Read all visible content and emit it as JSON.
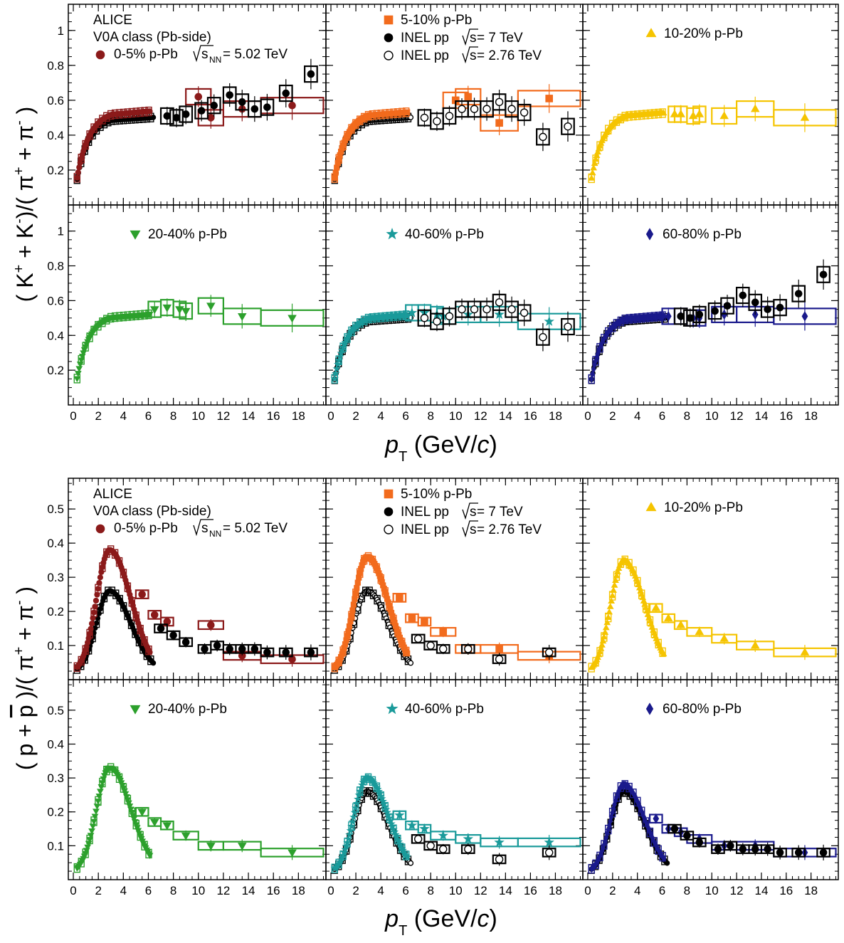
{
  "chart_data": [
    {
      "type": "scatter",
      "block": "kaon",
      "ylabel_parts": {
        "pre": "( K",
        "sup1": "+",
        "mid": " + K",
        "sup2": "-",
        "post": ")/( π",
        "sup3": "+",
        "post2": " + π",
        "sup4": "-",
        "post3": " )"
      },
      "xlabel_parts": {
        "p": "p",
        "sub": "T",
        "rest": " (GeV/",
        "c": "c",
        "close": ")"
      },
      "xlim": [
        -0.4,
        20.2
      ],
      "ylim": [
        0,
        1.15
      ],
      "yticks": [
        0.2,
        0.4,
        0.6,
        0.8,
        1
      ],
      "ytick_labels": [
        "0.2",
        "0.4",
        "0.6",
        "0.8",
        "1"
      ],
      "xticks": [
        0,
        2,
        4,
        6,
        8,
        10,
        12,
        14,
        16,
        18
      ],
      "xtick_labels": [
        "0",
        "2",
        "4",
        "6",
        "8",
        "10",
        "12",
        "14",
        "16",
        "18"
      ],
      "panels": [
        {
          "id": "0-5",
          "label": "0-5% p-Pb",
          "color": "#8b1a1a",
          "marker": "circle",
          "legend_ref": true
        },
        {
          "id": "5-10",
          "label": "5-10% p-Pb",
          "color": "#f26b1d",
          "marker": "square",
          "legend_ref": true
        },
        {
          "id": "10-20",
          "label": "10-20% p-Pb",
          "color": "#f5c400",
          "marker": "triangle-up"
        },
        {
          "id": "20-40",
          "label": "20-40% p-Pb",
          "color": "#2ca02c",
          "marker": "triangle-down"
        },
        {
          "id": "40-60",
          "label": "40-60% p-Pb",
          "color": "#1a9a9a",
          "marker": "star",
          "ref": "276"
        },
        {
          "id": "60-80",
          "label": "60-80% p-Pb",
          "color": "#1a1a8c",
          "marker": "diamond",
          "ref": "7"
        }
      ],
      "ppb_high": {
        "0-5": [
          [
            10.0,
            0.62,
            1.0
          ],
          [
            11.0,
            0.5,
            1.0
          ],
          [
            13.5,
            0.55,
            1.5
          ],
          [
            17.5,
            0.57,
            2.5
          ]
        ],
        "5-10": [
          [
            10.0,
            0.6,
            1.0
          ],
          [
            11.0,
            0.62,
            1.0
          ],
          [
            13.5,
            0.47,
            1.5
          ],
          [
            17.5,
            0.61,
            2.5
          ]
        ],
        "10-20": [
          [
            7.0,
            0.52,
            0.5
          ],
          [
            7.5,
            0.52,
            0.5
          ],
          [
            8.5,
            0.51,
            0.5
          ],
          [
            9.0,
            0.52,
            0.5
          ],
          [
            11.0,
            0.51,
            1.0
          ],
          [
            13.5,
            0.55,
            1.5
          ],
          [
            17.5,
            0.5,
            2.5
          ]
        ],
        "20-40": [
          [
            6.5,
            0.55,
            0.5
          ],
          [
            7.5,
            0.56,
            0.5
          ],
          [
            8.5,
            0.55,
            0.5
          ],
          [
            9.0,
            0.54,
            0.5
          ],
          [
            11.0,
            0.57,
            1.0
          ],
          [
            13.5,
            0.51,
            1.5
          ],
          [
            17.5,
            0.5,
            2.5
          ]
        ],
        "40-60": [
          [
            6.5,
            0.53,
            0.5
          ],
          [
            7.5,
            0.53,
            0.5
          ],
          [
            8.5,
            0.52,
            0.5
          ],
          [
            9.0,
            0.51,
            0.5
          ],
          [
            11.0,
            0.52,
            1.0
          ],
          [
            13.5,
            0.52,
            1.5
          ],
          [
            17.5,
            0.48,
            2.5
          ]
        ],
        "60-80": [
          [
            6.5,
            0.51,
            0.5
          ],
          [
            7.5,
            0.51,
            0.5
          ],
          [
            8.5,
            0.5,
            0.5
          ],
          [
            9.0,
            0.5,
            0.5
          ],
          [
            11.0,
            0.52,
            1.0
          ],
          [
            13.5,
            0.52,
            1.5
          ],
          [
            17.5,
            0.51,
            2.5
          ]
        ]
      },
      "pp7": [
        [
          7.5,
          0.51
        ],
        [
          8.25,
          0.5
        ],
        [
          9.0,
          0.52
        ],
        [
          10.25,
          0.54
        ],
        [
          11.25,
          0.57
        ],
        [
          12.5,
          0.63
        ],
        [
          13.5,
          0.59
        ],
        [
          14.5,
          0.55
        ],
        [
          15.5,
          0.56
        ],
        [
          17.0,
          0.64
        ],
        [
          19.0,
          0.75
        ]
      ],
      "pp276": [
        [
          7.5,
          0.5
        ],
        [
          8.5,
          0.48
        ],
        [
          9.5,
          0.51
        ],
        [
          10.5,
          0.55
        ],
        [
          11.5,
          0.55
        ],
        [
          12.5,
          0.55
        ],
        [
          13.5,
          0.59
        ],
        [
          14.5,
          0.55
        ],
        [
          15.5,
          0.53
        ],
        [
          17.0,
          0.39
        ],
        [
          19.0,
          0.45
        ]
      ]
    },
    {
      "type": "scatter",
      "block": "proton",
      "ylabel_parts": {
        "pre": "( p + ",
        "pbar": "p",
        "post": " )/( π",
        "sup3": "+",
        "post2": " + π",
        "sup4": "-",
        "post3": " )"
      },
      "xlabel_parts": {
        "p": "p",
        "sub": "T",
        "rest": " (GeV/",
        "c": "c",
        "close": ")"
      },
      "xlim": [
        -0.4,
        20.2
      ],
      "ylim": [
        0,
        0.59
      ],
      "yticks": [
        0.1,
        0.2,
        0.3,
        0.4,
        0.5
      ],
      "ytick_labels": [
        "0.1",
        "0.2",
        "0.3",
        "0.4",
        "0.5"
      ],
      "xticks": [
        0,
        2,
        4,
        6,
        8,
        10,
        12,
        14,
        16,
        18
      ],
      "xtick_labels": [
        "0",
        "2",
        "4",
        "6",
        "8",
        "10",
        "12",
        "14",
        "16",
        "18"
      ],
      "panels": [
        {
          "id": "0-5",
          "label": "0-5% p-Pb",
          "color": "#8b1a1a",
          "marker": "circle",
          "legend_ref": true
        },
        {
          "id": "5-10",
          "label": "5-10% p-Pb",
          "color": "#f26b1d",
          "marker": "square",
          "legend_ref": true
        },
        {
          "id": "10-20",
          "label": "10-20% p-Pb",
          "color": "#f5c400",
          "marker": "triangle-up"
        },
        {
          "id": "20-40",
          "label": "20-40% p-Pb",
          "color": "#2ca02c",
          "marker": "triangle-down"
        },
        {
          "id": "40-60",
          "label": "40-60% p-Pb",
          "color": "#1a9a9a",
          "marker": "star",
          "ref": "276"
        },
        {
          "id": "60-80",
          "label": "60-80% p-Pb",
          "color": "#1a1a8c",
          "marker": "diamond",
          "ref": "7"
        }
      ],
      "peak": {
        "0-5": 0.38,
        "5-10": 0.36,
        "10-20": 0.35,
        "20-40": 0.33,
        "40-60": 0.3,
        "60-80": 0.28
      },
      "pp_peak": 0.26,
      "ppb_high": {
        "0-5": [
          [
            5.5,
            0.25,
            0.5
          ],
          [
            6.5,
            0.19,
            0.5
          ],
          [
            7.5,
            0.17,
            0.5
          ],
          [
            11.0,
            0.16,
            1.0
          ],
          [
            13.5,
            0.07,
            1.5
          ],
          [
            17.5,
            0.06,
            2.5
          ]
        ],
        "5-10": [
          [
            5.5,
            0.24,
            0.5
          ],
          [
            6.5,
            0.18,
            0.5
          ],
          [
            7.5,
            0.17,
            0.5
          ],
          [
            9.0,
            0.14,
            1.0
          ],
          [
            11.0,
            0.09,
            1.0
          ],
          [
            13.5,
            0.09,
            1.5
          ],
          [
            17.5,
            0.07,
            2.5
          ]
        ],
        "10-20": [
          [
            5.5,
            0.21,
            0.5
          ],
          [
            6.5,
            0.18,
            0.5
          ],
          [
            7.5,
            0.16,
            0.5
          ],
          [
            9.0,
            0.14,
            1.0
          ],
          [
            11.0,
            0.12,
            1.0
          ],
          [
            13.5,
            0.1,
            1.5
          ],
          [
            17.5,
            0.08,
            2.5
          ]
        ],
        "20-40": [
          [
            5.5,
            0.2,
            0.5
          ],
          [
            6.5,
            0.17,
            0.5
          ],
          [
            7.5,
            0.16,
            0.5
          ],
          [
            9.0,
            0.13,
            1.0
          ],
          [
            11.0,
            0.1,
            1.0
          ],
          [
            13.5,
            0.1,
            1.5
          ],
          [
            17.5,
            0.08,
            2.5
          ]
        ],
        "40-60": [
          [
            5.5,
            0.19,
            0.5
          ],
          [
            6.5,
            0.16,
            0.5
          ],
          [
            7.5,
            0.15,
            0.5
          ],
          [
            9.0,
            0.13,
            1.0
          ],
          [
            11.0,
            0.12,
            1.0
          ],
          [
            13.5,
            0.11,
            1.5
          ],
          [
            17.5,
            0.11,
            2.5
          ]
        ],
        "60-80": [
          [
            5.5,
            0.18,
            0.5
          ],
          [
            6.5,
            0.15,
            0.5
          ],
          [
            7.5,
            0.14,
            0.5
          ],
          [
            9.0,
            0.12,
            1.0
          ],
          [
            11.0,
            0.1,
            1.0
          ],
          [
            13.5,
            0.1,
            1.5
          ],
          [
            17.5,
            0.08,
            2.5
          ]
        ]
      },
      "pp7": [
        [
          7.0,
          0.15
        ],
        [
          8.0,
          0.13
        ],
        [
          9.0,
          0.11
        ],
        [
          10.5,
          0.09
        ],
        [
          11.5,
          0.1
        ],
        [
          12.5,
          0.09
        ],
        [
          13.5,
          0.09
        ],
        [
          14.5,
          0.09
        ],
        [
          15.5,
          0.08
        ],
        [
          17.0,
          0.08
        ],
        [
          19.0,
          0.08
        ]
      ],
      "pp276": [
        [
          7.0,
          0.12
        ],
        [
          8.0,
          0.1
        ],
        [
          9.0,
          0.09
        ],
        [
          11.0,
          0.09
        ],
        [
          13.5,
          0.06
        ],
        [
          17.5,
          0.08
        ]
      ]
    }
  ],
  "legend": {
    "alice": "ALICE",
    "v0a": "V0A class (Pb-side)",
    "ppb_05": "0-5% p-Pb",
    "snn_pre": "s",
    "snn_sub": "NN",
    "snn_post": " = 5.02 TeV",
    "ppb_510": "5-10% p-Pb",
    "pp7_pre": "INEL pp ",
    "pp7_s": "s",
    "pp7_post": " = 7 TeV",
    "pp276_pre": "INEL pp ",
    "pp276_s": "s",
    "pp276_post": " = 2.76 TeV"
  }
}
